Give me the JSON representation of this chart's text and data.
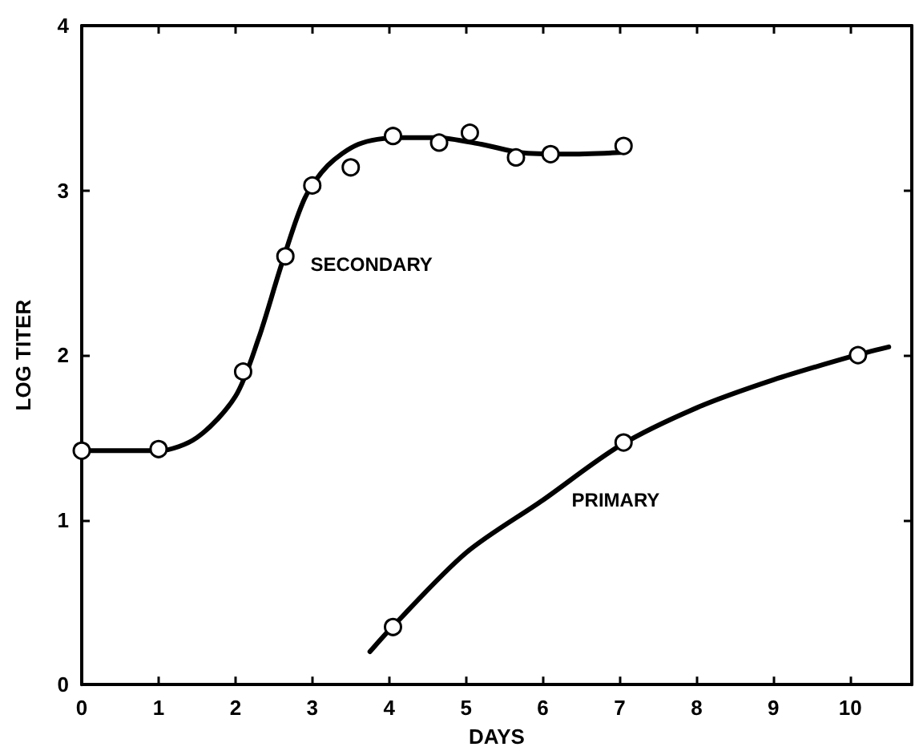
{
  "chart_data": {
    "type": "scatter",
    "xlabel": "DAYS",
    "ylabel": "LOG TITER",
    "xlim": [
      0,
      10.8
    ],
    "xticks": [
      0,
      1,
      2,
      3,
      4,
      5,
      6,
      7,
      8,
      9,
      10
    ],
    "ylim": [
      0,
      4
    ],
    "yticks": [
      0,
      1,
      2,
      3,
      4
    ],
    "grid": false,
    "legend": false,
    "marker": "circle",
    "series": [
      {
        "type": "line",
        "name": "SECONDARY",
        "marker": "none",
        "color": "#000000",
        "x": [
          0,
          1,
          1.5,
          2,
          2.3,
          2.6,
          2.9,
          3.2,
          3.6,
          4.1,
          4.6,
          5.2,
          5.7,
          6.3,
          7.0
        ],
        "values": [
          1.42,
          1.42,
          1.5,
          1.75,
          2.1,
          2.55,
          2.95,
          3.15,
          3.28,
          3.32,
          3.32,
          3.28,
          3.23,
          3.22,
          3.23
        ]
      },
      {
        "type": "line",
        "name": "PRIMARY",
        "marker": "none",
        "color": "#000000",
        "x": [
          3.75,
          4,
          5,
          6,
          7,
          8,
          9,
          10,
          10.5
        ],
        "values": [
          0.2,
          0.33,
          0.8,
          1.12,
          1.45,
          1.68,
          1.85,
          1.99,
          2.05
        ]
      },
      {
        "color": "#000000",
        "x": [
          0,
          1,
          2.1,
          2.65,
          3.0,
          3.5,
          4.05,
          4.65,
          5.05,
          5.65,
          6.1,
          7.05
        ],
        "values": [
          1.42,
          1.43,
          1.9,
          2.6,
          3.03,
          3.14,
          3.33,
          3.29,
          3.35,
          3.2,
          3.22,
          3.27
        ]
      },
      {
        "color": "#000000",
        "x": [
          4.05,
          7.05,
          10.1
        ],
        "values": [
          0.35,
          1.47,
          2.0
        ]
      }
    ]
  }
}
